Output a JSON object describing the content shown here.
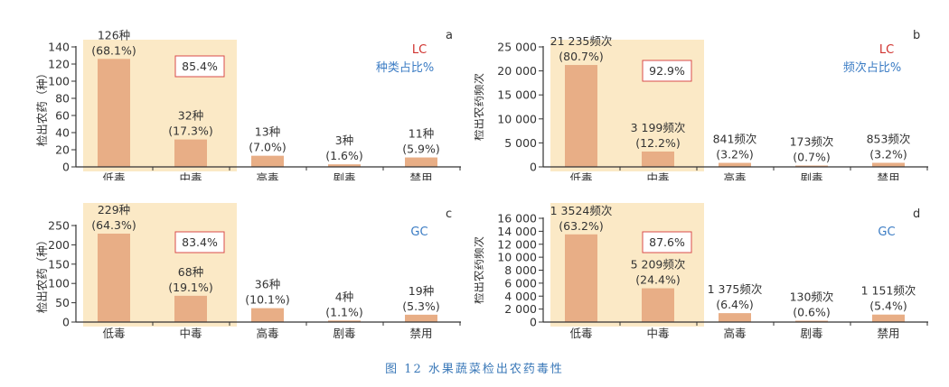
{
  "figure_caption": "图 12   水果蔬菜检出农药毒性",
  "colors": {
    "bar": "#e8ae86",
    "highlight_bg": "#fbe9c6",
    "axis": "#333333",
    "lc_label": "#d0322e",
    "gc_label": "#3b7cc4",
    "ratio_label": "#3b7cc4",
    "box_border": "#d94b4b"
  },
  "chart_data": [
    {
      "panel": "a",
      "type": "bar",
      "method": "LC",
      "legend_note": "种类占比%",
      "highlight_percent": "85.4%",
      "ylabel": "检出农药（种）",
      "ylim": [
        0,
        140
      ],
      "yticks": [
        0,
        20,
        40,
        60,
        80,
        100,
        120,
        140
      ],
      "ytick_labels": [
        "0",
        "20",
        "40",
        "60",
        "80",
        "100",
        "120",
        "140"
      ],
      "categories": [
        "低毒",
        "中毒",
        "高毒",
        "剧毒",
        "禁用"
      ],
      "values": [
        126,
        32,
        13,
        3,
        11
      ],
      "value_labels": [
        "126种",
        "32种",
        "13种",
        "3种",
        "11种"
      ],
      "percent_labels": [
        "(68.1%)",
        "(17.3%)",
        "(7.0%)",
        "(1.6%)",
        "(5.9%)"
      ],
      "highlighted_categories": [
        "低毒",
        "中毒"
      ]
    },
    {
      "panel": "b",
      "type": "bar",
      "method": "LC",
      "legend_note": "频次占比%",
      "highlight_percent": "92.9%",
      "ylabel": "检出农药频次",
      "ylim": [
        0,
        25000
      ],
      "yticks": [
        0,
        5000,
        10000,
        15000,
        20000,
        25000
      ],
      "ytick_labels": [
        "0",
        "5 000",
        "10 000",
        "15 000",
        "20 000",
        "25 000"
      ],
      "categories": [
        "低毒",
        "中毒",
        "高毒",
        "剧毒",
        "禁用"
      ],
      "values": [
        21235,
        3199,
        841,
        173,
        853
      ],
      "value_labels": [
        "21 235频次",
        "3 199频次",
        "841频次",
        "173频次",
        "853频次"
      ],
      "percent_labels": [
        "(80.7%)",
        "(12.2%)",
        "(3.2%)",
        "(0.7%)",
        "(3.2%)"
      ],
      "highlighted_categories": [
        "低毒",
        "中毒"
      ]
    },
    {
      "panel": "c",
      "type": "bar",
      "method": "GC",
      "legend_note": "",
      "highlight_percent": "83.4%",
      "ylabel": "检出农药（种）",
      "ylim": [
        0,
        250
      ],
      "yticks": [
        0,
        50,
        100,
        150,
        200,
        250
      ],
      "ytick_labels": [
        "0",
        "50",
        "100",
        "150",
        "200",
        "250"
      ],
      "categories": [
        "低毒",
        "中毒",
        "高毒",
        "剧毒",
        "禁用"
      ],
      "values": [
        229,
        68,
        36,
        4,
        19
      ],
      "value_labels": [
        "229种",
        "68种",
        "36种",
        "4种",
        "19种"
      ],
      "percent_labels": [
        "(64.3%)",
        "(19.1%)",
        "(10.1%)",
        "(1.1%)",
        "(5.3%)"
      ],
      "highlighted_categories": [
        "低毒",
        "中毒"
      ]
    },
    {
      "panel": "d",
      "type": "bar",
      "method": "GC",
      "legend_note": "",
      "highlight_percent": "87.6%",
      "ylabel": "检出农药频次",
      "ylim": [
        0,
        16000
      ],
      "yticks": [
        0,
        2000,
        4000,
        6000,
        8000,
        10000,
        12000,
        14000,
        16000
      ],
      "ytick_labels": [
        "0",
        "2 000",
        "4 000",
        "6 000",
        "8 000",
        "10 000",
        "12 000",
        "14 000",
        "16 000"
      ],
      "categories": [
        "低毒",
        "中毒",
        "高毒",
        "剧毒",
        "禁用"
      ],
      "values": [
        13524,
        5209,
        1375,
        130,
        1151
      ],
      "value_labels": [
        "1 3524频次",
        "5 209频次",
        "1 375频次",
        "130频次",
        "1 151频次"
      ],
      "percent_labels": [
        "(63.2%)",
        "(24.4%)",
        "(6.4%)",
        "(0.6%)",
        "(5.4%)"
      ],
      "highlighted_categories": [
        "低毒",
        "中毒"
      ]
    }
  ]
}
